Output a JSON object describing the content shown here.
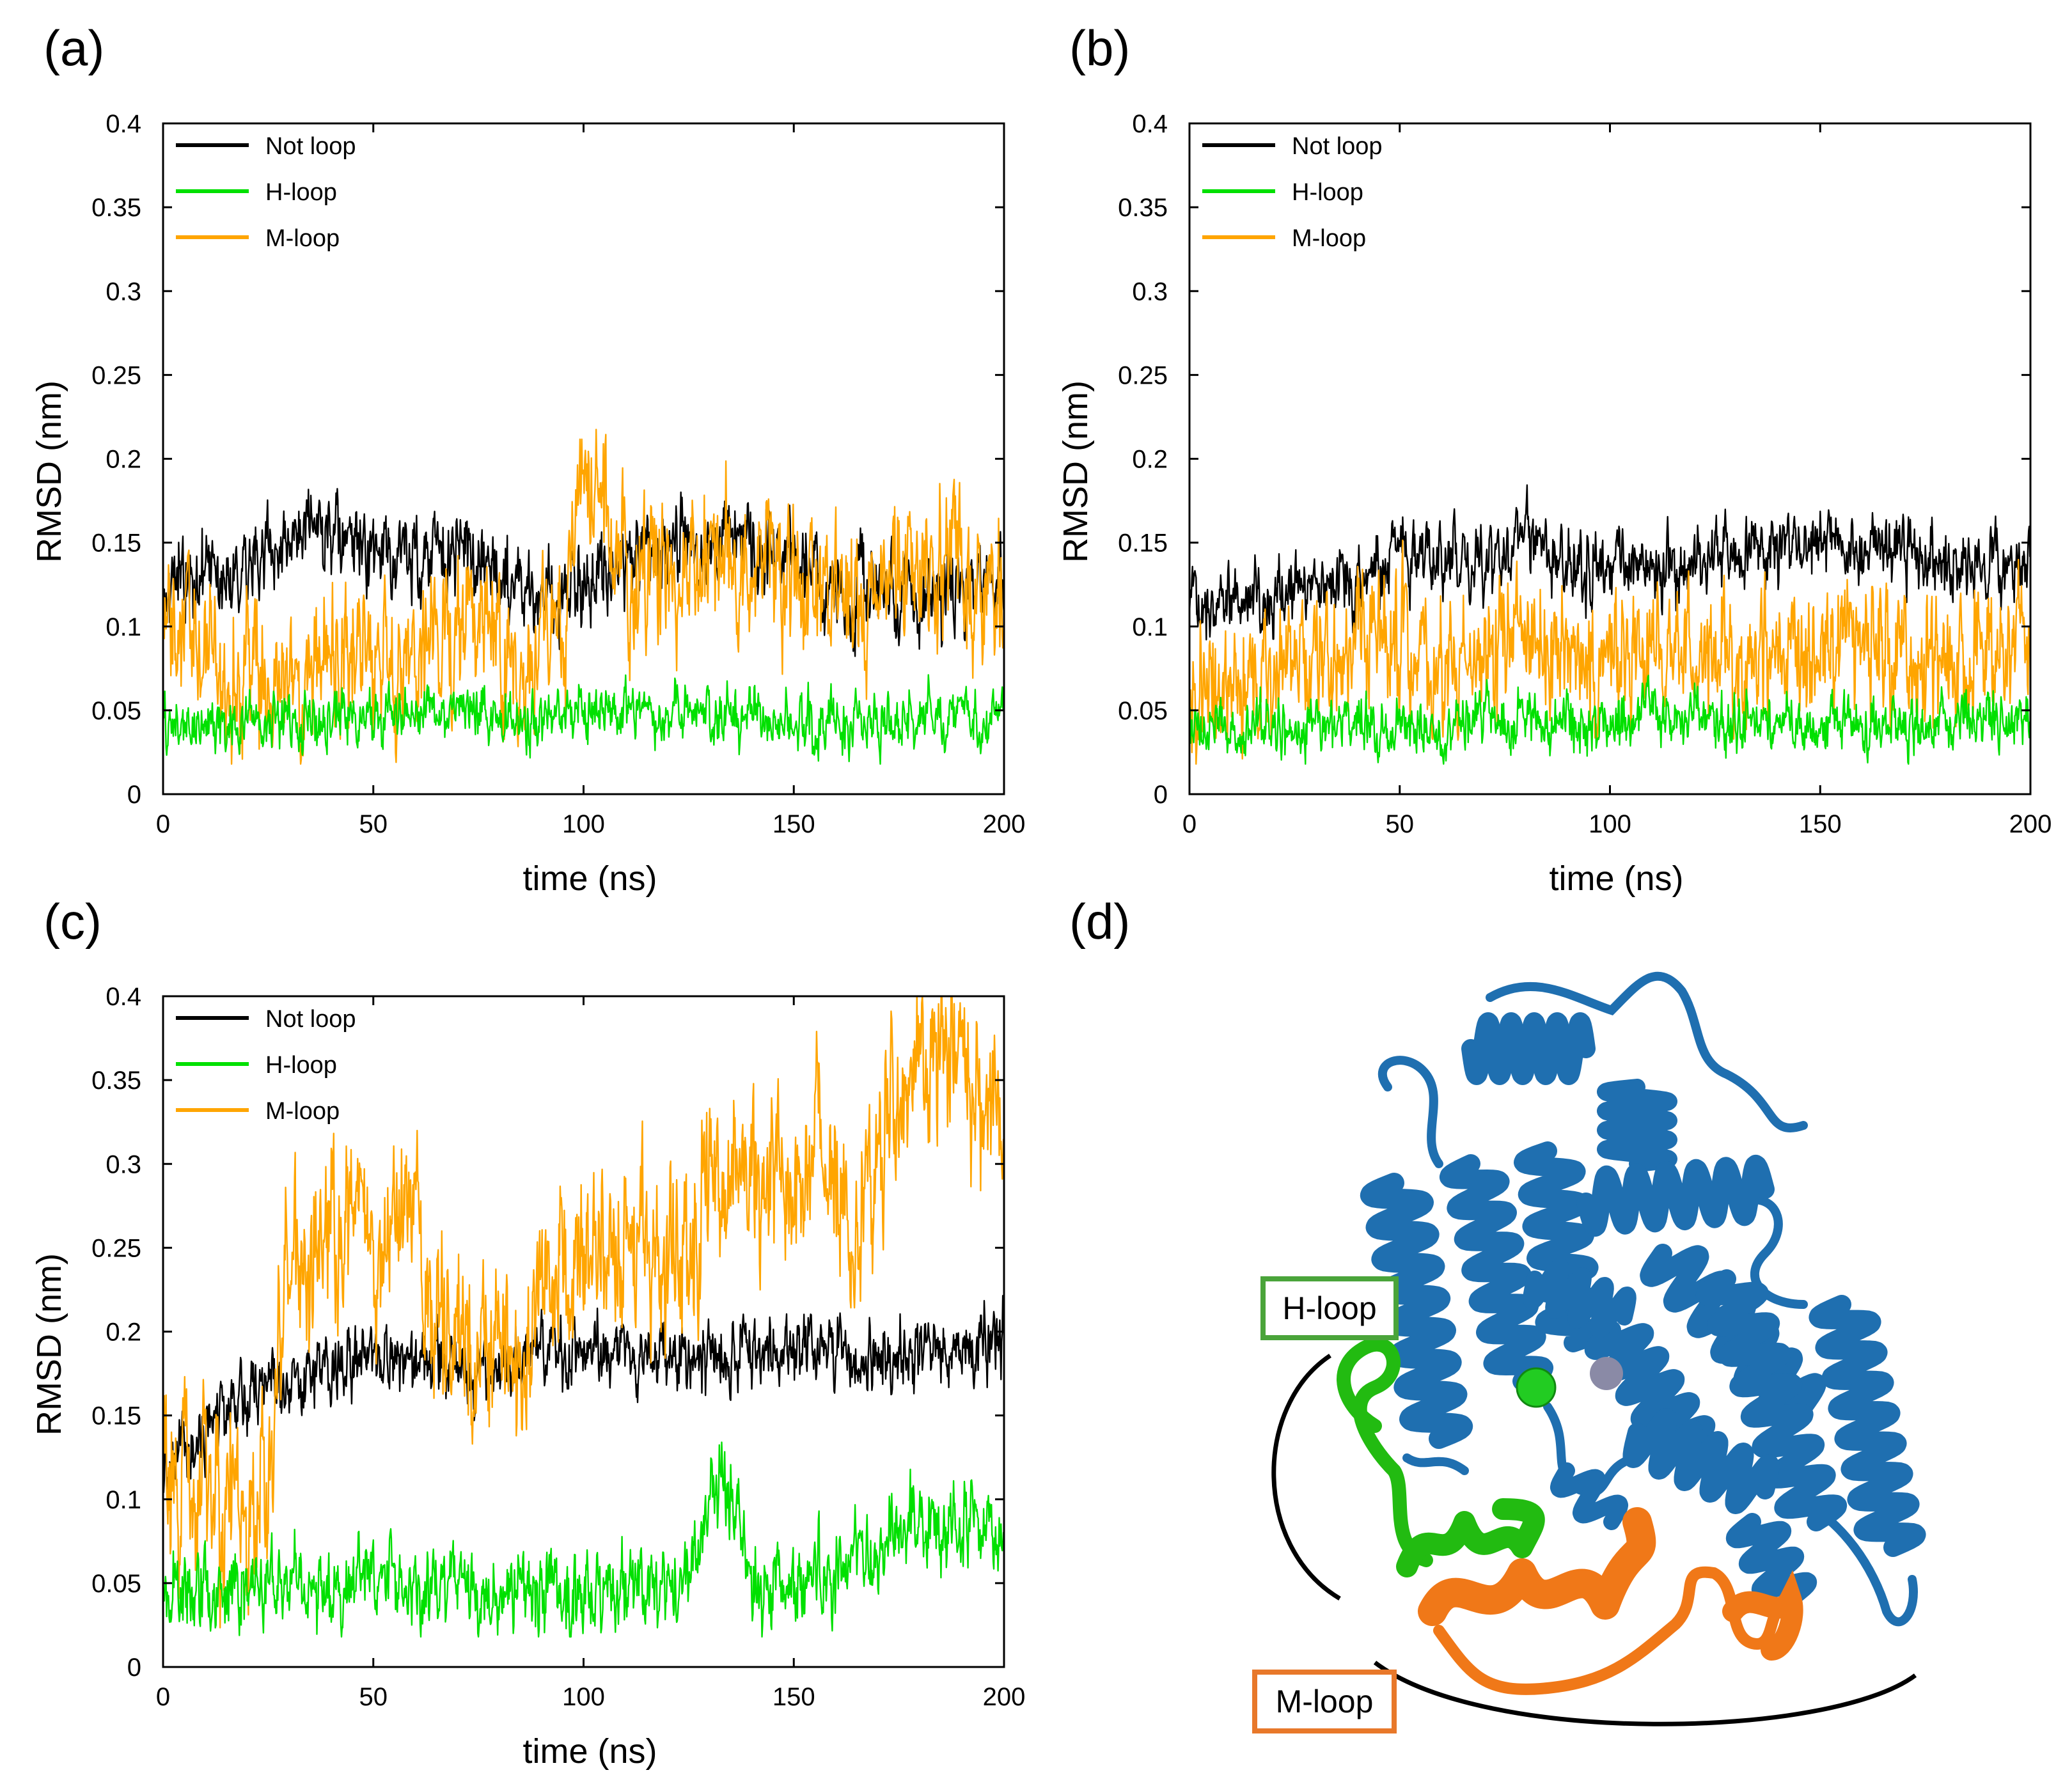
{
  "panels": {
    "a": "(a)",
    "b": "(b)",
    "c": "(c)",
    "d": "(d)"
  },
  "colors": {
    "not_loop": "#000000",
    "h_loop": "#00e000",
    "m_loop": "#ffa500",
    "protein": "#1f6fb0",
    "h_region": "#22bb11",
    "m_region": "#f07818",
    "h_box": "#4aa43a",
    "m_box": "#e8782a",
    "ion_green": "#22cc22",
    "ion_gray": "#8a8aa6"
  },
  "structure": {
    "h_loop_label": "H-loop",
    "m_loop_label": "M-loop"
  },
  "chart_data": [
    {
      "panel": "(a)",
      "type": "line",
      "xlabel": "time (ns)",
      "ylabel": "RMSD (nm)",
      "xlim": [
        0,
        200
      ],
      "ylim": [
        0,
        0.4
      ],
      "xticks": [
        "0",
        "50",
        "100",
        "150",
        "200"
      ],
      "yticks": [
        "0",
        "0.05",
        "0.1",
        "0.15",
        "0.2",
        "0.25",
        "0.3",
        "0.35",
        "0.4"
      ],
      "legend_position": "top-left",
      "noise": [
        0.012,
        0.008,
        0.02
      ],
      "series": [
        {
          "name": "Not loop",
          "key": "not_loop",
          "x": [
            0,
            10,
            20,
            30,
            36,
            45,
            55,
            65,
            75,
            85,
            92,
            100,
            110,
            120,
            130,
            140,
            150,
            160,
            170,
            180,
            190,
            200
          ],
          "y": [
            0.125,
            0.13,
            0.14,
            0.148,
            0.155,
            0.148,
            0.14,
            0.145,
            0.14,
            0.125,
            0.115,
            0.13,
            0.14,
            0.145,
            0.15,
            0.148,
            0.14,
            0.125,
            0.12,
            0.12,
            0.115,
            0.13
          ]
        },
        {
          "name": "H-loop",
          "key": "h_loop",
          "x": [
            0,
            20,
            40,
            60,
            75,
            85,
            100,
            125,
            150,
            175,
            200
          ],
          "y": [
            0.04,
            0.042,
            0.045,
            0.05,
            0.05,
            0.044,
            0.048,
            0.05,
            0.042,
            0.042,
            0.048
          ]
        },
        {
          "name": "M-loop",
          "key": "m_loop",
          "x": [
            0,
            10,
            20,
            30,
            45,
            55,
            65,
            75,
            85,
            95,
            100,
            105,
            110,
            120,
            130,
            140,
            150,
            160,
            170,
            180,
            190,
            200
          ],
          "y": [
            0.1,
            0.08,
            0.07,
            0.07,
            0.085,
            0.08,
            0.09,
            0.1,
            0.07,
            0.11,
            0.175,
            0.165,
            0.13,
            0.13,
            0.14,
            0.135,
            0.13,
            0.125,
            0.12,
            0.13,
            0.13,
            0.12
          ]
        }
      ]
    },
    {
      "panel": "(b)",
      "type": "line",
      "xlabel": "time (ns)",
      "ylabel": "RMSD (nm)",
      "xlim": [
        0,
        200
      ],
      "ylim": [
        0,
        0.4
      ],
      "xticks": [
        "0",
        "50",
        "100",
        "150",
        "200"
      ],
      "yticks": [
        "0",
        "0.05",
        "0.1",
        "0.15",
        "0.2",
        "0.25",
        "0.3",
        "0.35",
        "0.4"
      ],
      "legend_position": "top-left",
      "noise": [
        0.01,
        0.008,
        0.018
      ],
      "series": [
        {
          "name": "Not loop",
          "key": "not_loop",
          "x": [
            0,
            10,
            20,
            30,
            40,
            50,
            60,
            70,
            80,
            90,
            100,
            110,
            120,
            130,
            140,
            150,
            160,
            170,
            180,
            190,
            200
          ],
          "y": [
            0.115,
            0.12,
            0.12,
            0.125,
            0.13,
            0.145,
            0.14,
            0.14,
            0.15,
            0.14,
            0.14,
            0.135,
            0.14,
            0.14,
            0.145,
            0.158,
            0.145,
            0.14,
            0.14,
            0.135,
            0.14
          ]
        },
        {
          "name": "H-loop",
          "key": "h_loop",
          "x": [
            0,
            20,
            40,
            60,
            70,
            80,
            100,
            110,
            130,
            150,
            170,
            190,
            200
          ],
          "y": [
            0.04,
            0.04,
            0.042,
            0.04,
            0.05,
            0.045,
            0.042,
            0.05,
            0.04,
            0.042,
            0.04,
            0.045,
            0.048
          ]
        },
        {
          "name": "M-loop",
          "key": "m_loop",
          "x": [
            0,
            10,
            20,
            30,
            40,
            50,
            55,
            60,
            70,
            80,
            90,
            100,
            110,
            120,
            130,
            140,
            150,
            160,
            170,
            180,
            190,
            200
          ],
          "y": [
            0.065,
            0.06,
            0.065,
            0.075,
            0.09,
            0.1,
            0.07,
            0.07,
            0.085,
            0.095,
            0.085,
            0.08,
            0.085,
            0.08,
            0.085,
            0.075,
            0.08,
            0.085,
            0.08,
            0.08,
            0.08,
            0.08
          ]
        }
      ]
    },
    {
      "panel": "(c)",
      "type": "line",
      "xlabel": "time (ns)",
      "ylabel": "RMSD (nm)",
      "xlim": [
        0,
        200
      ],
      "ylim": [
        0,
        0.4
      ],
      "xticks": [
        "0",
        "50",
        "100",
        "150",
        "200"
      ],
      "yticks": [
        "0",
        "0.05",
        "0.1",
        "0.15",
        "0.2",
        "0.25",
        "0.3",
        "0.35",
        "0.4"
      ],
      "legend_position": "top-left",
      "noise": [
        0.01,
        0.012,
        0.025
      ],
      "series": [
        {
          "name": "Not loop",
          "key": "not_loop",
          "x": [
            0,
            5,
            10,
            15,
            20,
            25,
            30,
            40,
            50,
            60,
            70,
            80,
            90,
            100,
            110,
            120,
            130,
            140,
            150,
            160,
            170,
            180,
            190,
            200
          ],
          "y": [
            0.11,
            0.12,
            0.14,
            0.155,
            0.16,
            0.17,
            0.175,
            0.18,
            0.18,
            0.18,
            0.175,
            0.175,
            0.19,
            0.19,
            0.185,
            0.185,
            0.185,
            0.19,
            0.19,
            0.185,
            0.185,
            0.185,
            0.19,
            0.195
          ]
        },
        {
          "name": "H-loop",
          "key": "h_loop",
          "x": [
            0,
            20,
            40,
            60,
            80,
            100,
            120,
            127,
            130,
            135,
            140,
            150,
            160,
            170,
            180,
            190,
            200
          ],
          "y": [
            0.045,
            0.045,
            0.05,
            0.05,
            0.045,
            0.045,
            0.045,
            0.06,
            0.115,
            0.1,
            0.05,
            0.05,
            0.055,
            0.07,
            0.085,
            0.085,
            0.07
          ]
        },
        {
          "name": "M-loop",
          "key": "m_loop",
          "x": [
            0,
            5,
            10,
            15,
            20,
            25,
            30,
            40,
            50,
            60,
            65,
            70,
            75,
            80,
            85,
            90,
            95,
            100,
            110,
            120,
            125,
            130,
            140,
            150,
            160,
            165,
            170,
            175,
            180,
            190,
            200
          ],
          "y": [
            0.13,
            0.12,
            0.11,
            0.1,
            0.095,
            0.13,
            0.23,
            0.26,
            0.26,
            0.27,
            0.2,
            0.2,
            0.2,
            0.18,
            0.18,
            0.24,
            0.23,
            0.245,
            0.25,
            0.24,
            0.25,
            0.28,
            0.29,
            0.28,
            0.3,
            0.25,
            0.3,
            0.34,
            0.36,
            0.36,
            0.32
          ]
        }
      ]
    }
  ]
}
